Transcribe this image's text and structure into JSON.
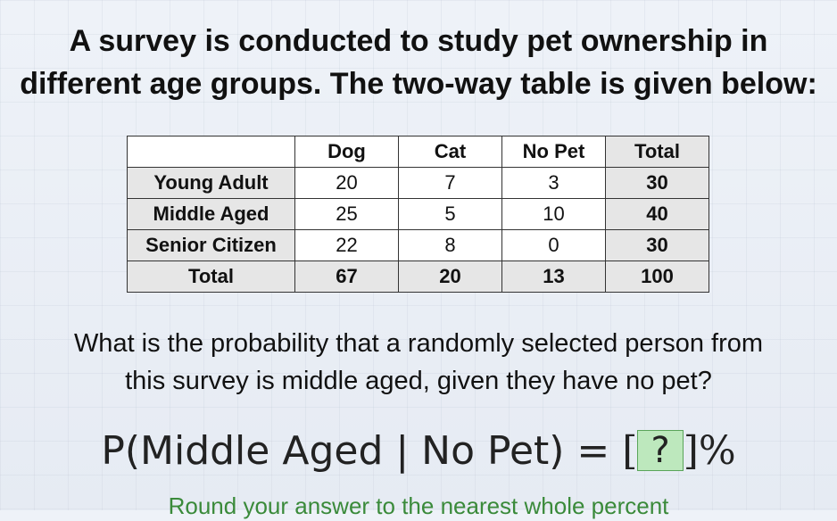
{
  "title": {
    "line1": "A survey is conducted to study pet ownership in",
    "line2": "different age groups. The two-way table is given below:"
  },
  "table": {
    "headers": [
      "",
      "Dog",
      "Cat",
      "No Pet",
      "Total"
    ],
    "rows": [
      {
        "label": "Young Adult",
        "values": [
          "20",
          "7",
          "3"
        ],
        "total": "30"
      },
      {
        "label": "Middle Aged",
        "values": [
          "25",
          "5",
          "10"
        ],
        "total": "40"
      },
      {
        "label": "Senior Citizen",
        "values": [
          "22",
          "8",
          "0"
        ],
        "total": "30"
      }
    ],
    "total_row": {
      "label": "Total",
      "values": [
        "67",
        "20",
        "13"
      ],
      "total": "100"
    }
  },
  "question": {
    "line1": "What is the probability that a randomly selected person from",
    "line2": "this survey is middle aged, given they have no pet?"
  },
  "formula": {
    "lhs": "P(Middle Aged | No Pet) =",
    "open_bracket": "[",
    "answer_placeholder": "?",
    "close_bracket": "]",
    "unit": "%"
  },
  "hint": "Round your answer to the nearest whole percent",
  "colors": {
    "answer_box_fill": "#bde8bd",
    "hint_text": "#3a8a3a",
    "table_shade": "#e6e6e6"
  }
}
